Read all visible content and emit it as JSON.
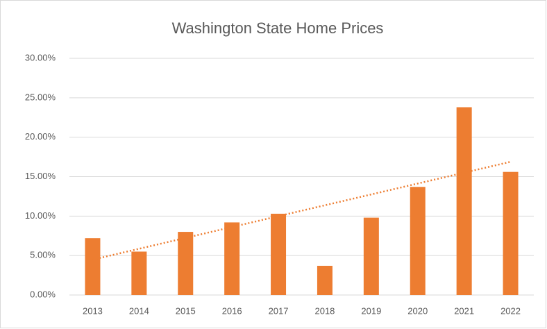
{
  "chart_data": {
    "type": "bar",
    "title": "Washington State Home Prices",
    "categories": [
      "2013",
      "2014",
      "2015",
      "2016",
      "2017",
      "2018",
      "2019",
      "2020",
      "2021",
      "2022"
    ],
    "values": [
      7.2,
      5.5,
      8.0,
      9.2,
      10.3,
      3.7,
      9.8,
      13.7,
      23.8,
      15.6
    ],
    "color": "#ed7d31",
    "ylim": [
      0,
      30
    ],
    "yticks": [
      {
        "value": 0,
        "label": "0.00%"
      },
      {
        "value": 5,
        "label": "5.00%"
      },
      {
        "value": 10,
        "label": "10.00%"
      },
      {
        "value": 15,
        "label": "15.00%"
      },
      {
        "value": 20,
        "label": "20.00%"
      },
      {
        "value": 25,
        "label": "25.00%"
      },
      {
        "value": 30,
        "label": "30.00%"
      }
    ],
    "grid": true,
    "trendline": "linear"
  }
}
